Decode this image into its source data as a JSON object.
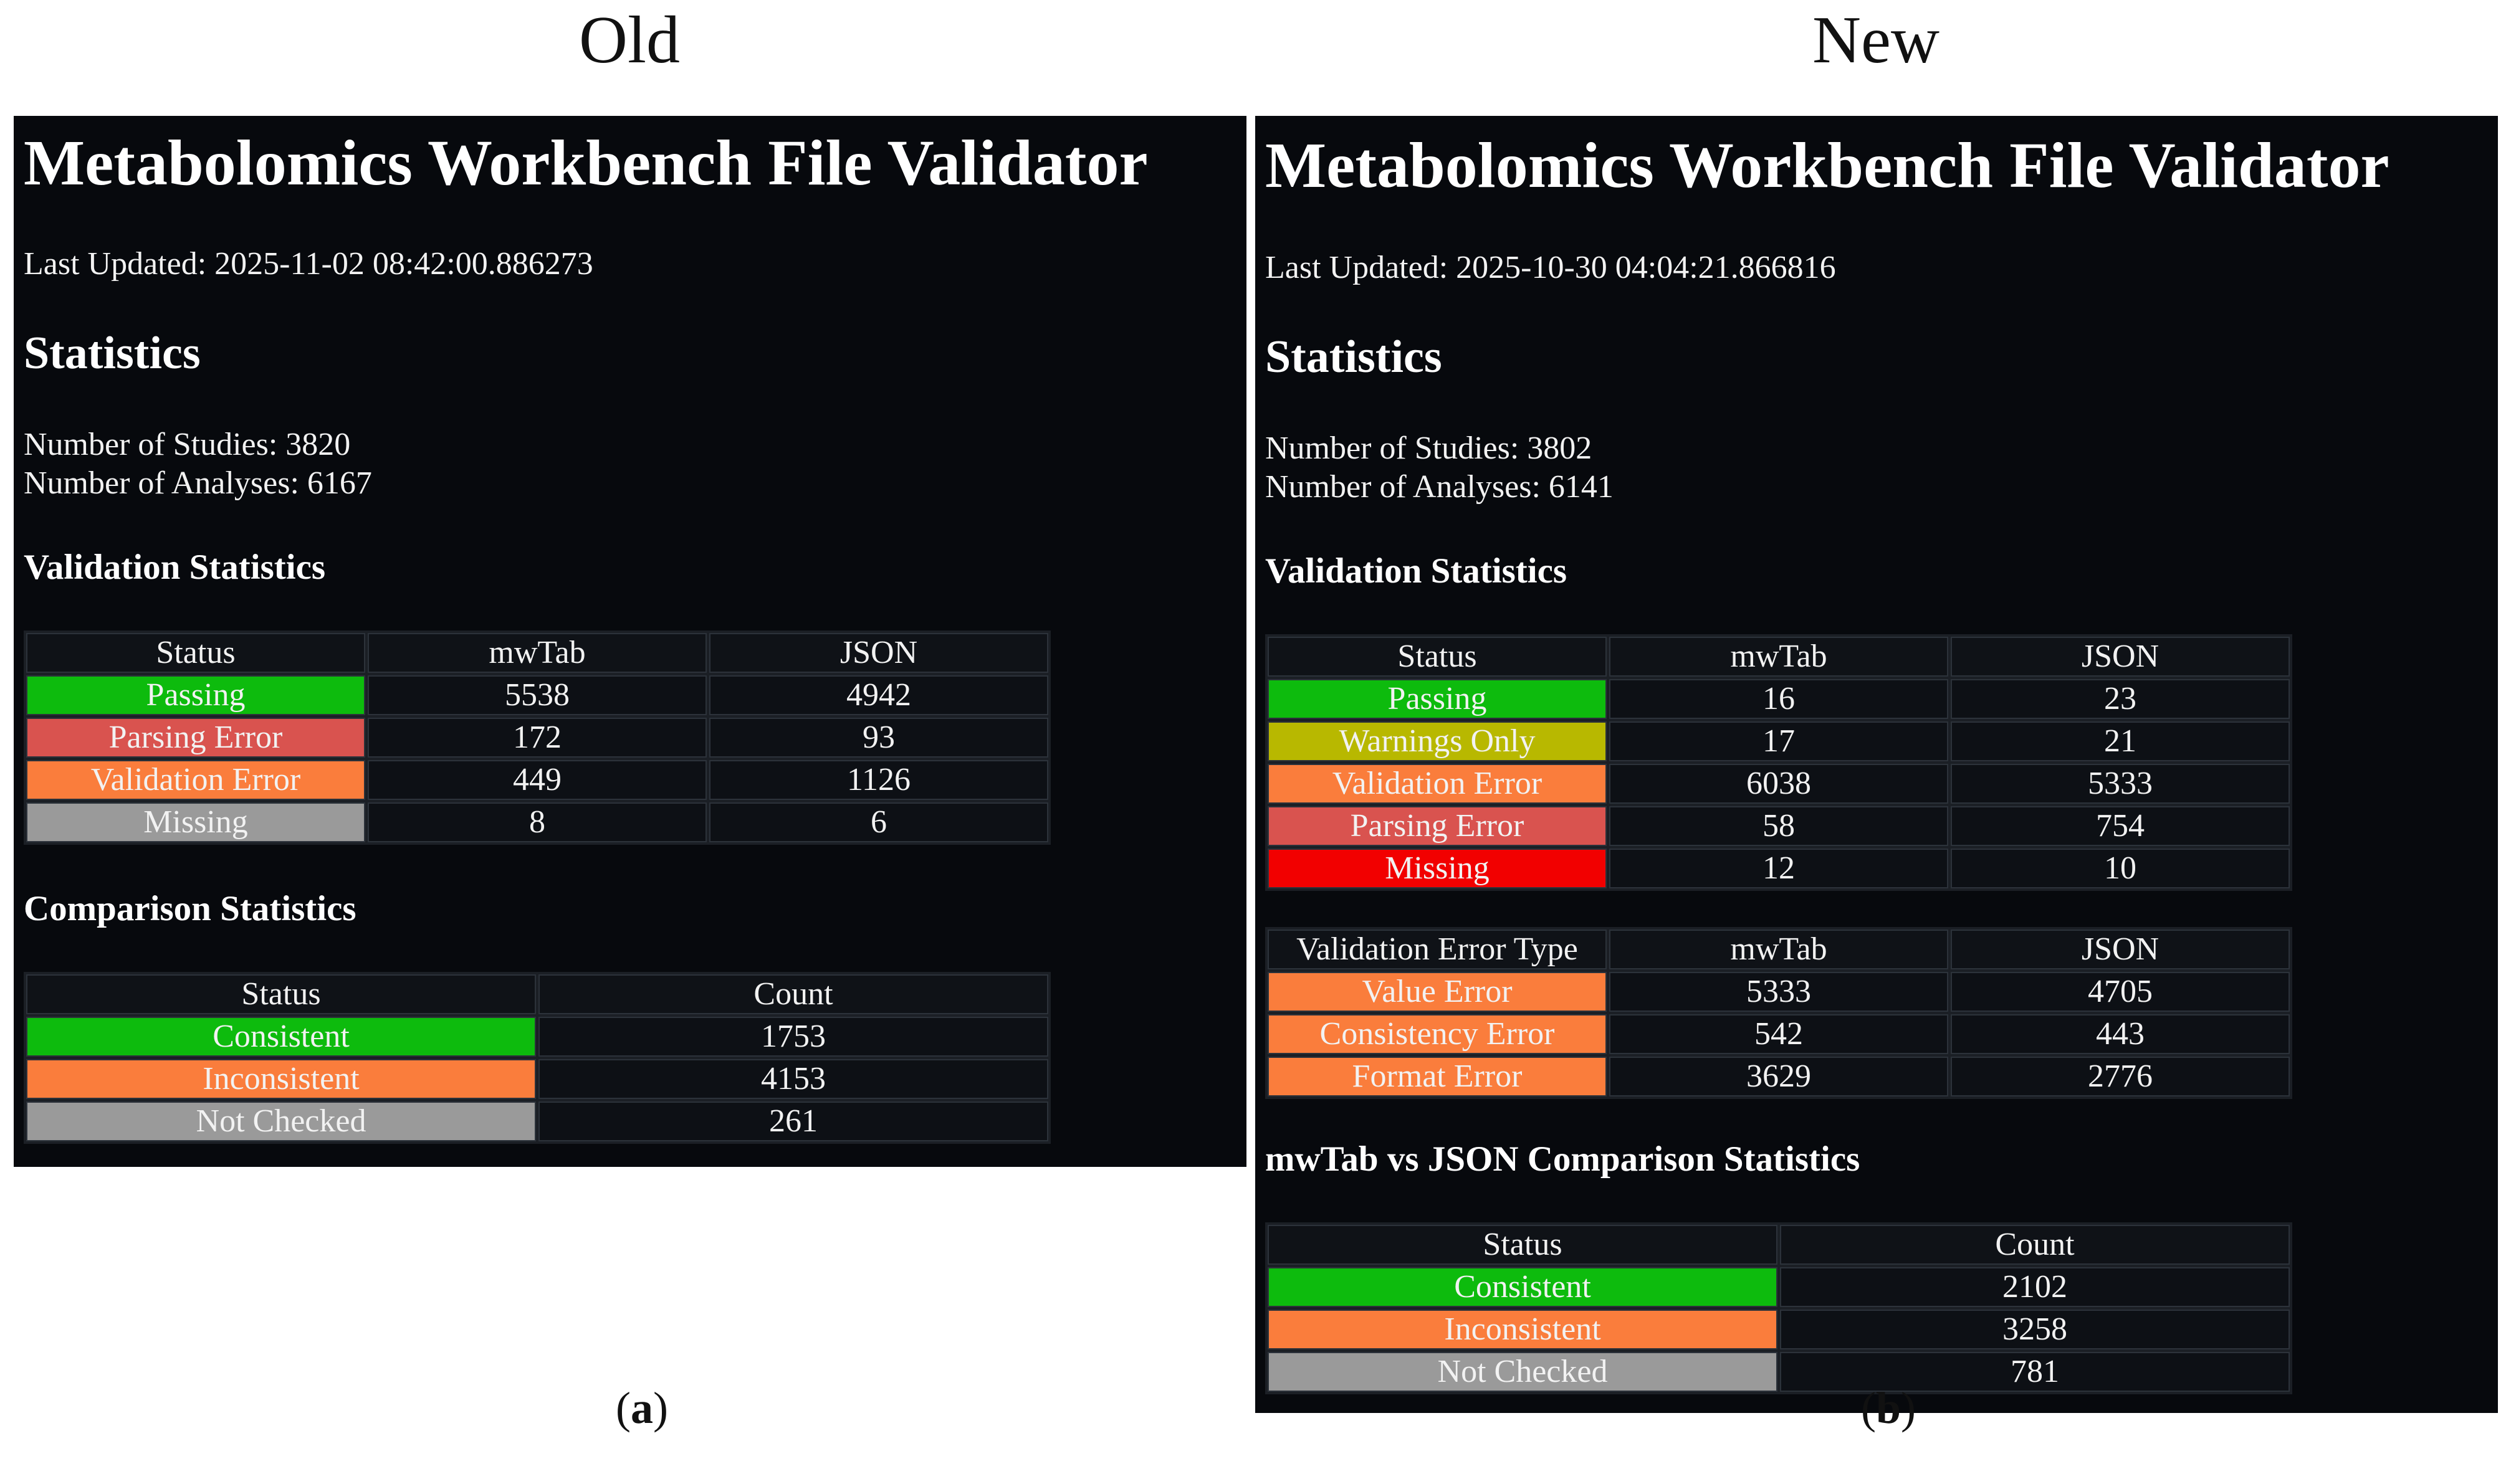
{
  "figure": {
    "label_old": "Old",
    "label_new": "New",
    "caption_a": {
      "open": "(",
      "letter": "a",
      "close": ")"
    },
    "caption_b": {
      "open": "(",
      "letter": "b",
      "close": ")"
    }
  },
  "colors": {
    "passing": "#0dbb0d",
    "parsing_error": "#d9534f",
    "validation_error": "#fa7d3c",
    "missing_old": "#9a9a9a",
    "missing_new": "#f20000",
    "warnings_only": "#b8b800",
    "consistent": "#0dbb0d",
    "inconsistent": "#fa7d3c",
    "not_checked": "#9a9a9a",
    "panel_background": "#07090d"
  },
  "old": {
    "title": "Metabolomics Workbench File Validator",
    "last_updated": "Last Updated: 2025-11-02 08:42:00.886273",
    "statistics_heading": "Statistics",
    "num_studies": "Number of Studies: 3820",
    "num_analyses": "Number of Analyses: 6167",
    "validation_heading": "Validation Statistics",
    "validation_table": {
      "headers": [
        "Status",
        "mwTab",
        "JSON"
      ],
      "rows": [
        {
          "status": "Passing",
          "mwtab": "5538",
          "json": "4942"
        },
        {
          "status": "Parsing Error",
          "mwtab": "172",
          "json": "93"
        },
        {
          "status": "Validation Error",
          "mwtab": "449",
          "json": "1126"
        },
        {
          "status": "Missing",
          "mwtab": "8",
          "json": "6"
        }
      ]
    },
    "comparison_heading": "Comparison Statistics",
    "comparison_table": {
      "headers": [
        "Status",
        "Count"
      ],
      "rows": [
        {
          "status": "Consistent",
          "count": "1753"
        },
        {
          "status": "Inconsistent",
          "count": "4153"
        },
        {
          "status": "Not Checked",
          "count": "261"
        }
      ]
    }
  },
  "new": {
    "title": "Metabolomics Workbench File Validator",
    "last_updated": "Last Updated: 2025-10-30 04:04:21.866816",
    "statistics_heading": "Statistics",
    "num_studies": "Number of Studies: 3802",
    "num_analyses": "Number of Analyses: 6141",
    "validation_heading": "Validation Statistics",
    "validation_table": {
      "headers": [
        "Status",
        "mwTab",
        "JSON"
      ],
      "rows": [
        {
          "status": "Passing",
          "mwtab": "16",
          "json": "23"
        },
        {
          "status": "Warnings Only",
          "mwtab": "17",
          "json": "21"
        },
        {
          "status": "Validation Error",
          "mwtab": "6038",
          "json": "5333"
        },
        {
          "status": "Parsing Error",
          "mwtab": "58",
          "json": "754"
        },
        {
          "status": "Missing",
          "mwtab": "12",
          "json": "10"
        }
      ]
    },
    "error_type_table": {
      "headers": [
        "Validation Error Type",
        "mwTab",
        "JSON"
      ],
      "rows": [
        {
          "status": "Value Error",
          "mwtab": "5333",
          "json": "4705"
        },
        {
          "status": "Consistency Error",
          "mwtab": "542",
          "json": "443"
        },
        {
          "status": "Format Error",
          "mwtab": "3629",
          "json": "2776"
        }
      ]
    },
    "comparison_heading": "mwTab vs JSON Comparison Statistics",
    "comparison_table": {
      "headers": [
        "Status",
        "Count"
      ],
      "rows": [
        {
          "status": "Consistent",
          "count": "2102"
        },
        {
          "status": "Inconsistent",
          "count": "3258"
        },
        {
          "status": "Not Checked",
          "count": "781"
        }
      ]
    }
  }
}
